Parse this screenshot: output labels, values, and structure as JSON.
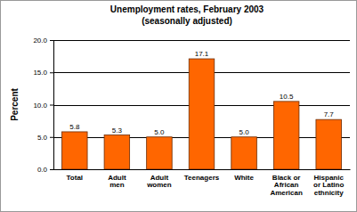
{
  "chart_data": {
    "type": "bar",
    "title": "Unemployment rates, February 2003",
    "subtitle": "(seasonally adjusted)",
    "y_label": "Percent",
    "categories": [
      "Total",
      "Adult men",
      "Adult women",
      "Teenagers",
      "White",
      "Black or African American",
      "Hispanic or Latino ethnicity"
    ],
    "values": [
      5.8,
      5.3,
      5.0,
      17.1,
      5.0,
      10.5,
      7.7
    ],
    "value_labels": [
      "5.8",
      "5.3",
      "5.0",
      "17.1",
      "5.0",
      "10.5",
      "7.7"
    ],
    "color": "#ff6600",
    "ylim": [
      0,
      20
    ],
    "yticks": [
      {
        "value": 0,
        "label": "0.0"
      },
      {
        "value": 5,
        "label": "5.0"
      },
      {
        "value": 10,
        "label": "10.0"
      },
      {
        "value": 15,
        "label": "15.0"
      },
      {
        "value": 20,
        "label": "20.0"
      }
    ],
    "grid": true,
    "data_labels": true
  }
}
